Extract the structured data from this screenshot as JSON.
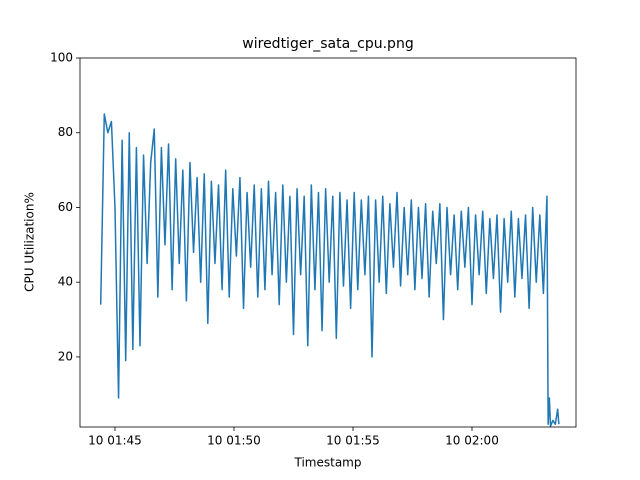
{
  "chart_data": {
    "type": "line",
    "title": "wiredtiger_sata_cpu.png",
    "x_label": "Timestamp",
    "y_label": "CPU Utilization%",
    "color": "#1f77b4",
    "x": [
      104.4,
      104.55,
      104.7,
      104.85,
      105,
      105.15,
      105.3,
      105.45,
      105.6,
      105.75,
      105.9,
      106.05,
      106.2,
      106.35,
      106.5,
      106.65,
      106.8,
      106.95,
      107.1,
      107.25,
      107.4,
      107.55,
      107.7,
      107.85,
      108,
      108.15,
      108.3,
      108.45,
      108.6,
      108.75,
      108.9,
      109.05,
      109.2,
      109.35,
      109.5,
      109.65,
      109.8,
      109.95,
      110.1,
      110.25,
      110.4,
      110.55,
      110.7,
      110.85,
      111,
      111.15,
      111.3,
      111.45,
      111.6,
      111.75,
      111.9,
      112.05,
      112.2,
      112.35,
      112.5,
      112.65,
      112.8,
      112.95,
      113.1,
      113.25,
      113.4,
      113.55,
      113.7,
      113.85,
      114,
      114.15,
      114.3,
      114.45,
      114.6,
      114.75,
      114.9,
      115.05,
      115.2,
      115.35,
      115.5,
      115.65,
      115.8,
      115.95,
      116.1,
      116.25,
      116.4,
      116.55,
      116.7,
      116.85,
      117,
      117.15,
      117.3,
      117.45,
      117.6,
      117.75,
      117.9,
      118.05,
      118.2,
      118.35,
      118.5,
      118.65,
      118.8,
      118.95,
      119.1,
      119.25,
      119.4,
      119.55,
      119.7,
      119.85,
      120,
      120.15,
      120.3,
      120.45,
      120.6,
      120.75,
      120.9,
      121.05,
      121.2,
      121.35,
      121.5,
      121.65,
      121.8,
      121.95,
      122.1,
      122.25,
      122.4,
      122.55,
      122.7,
      122.85,
      123,
      123.15,
      123.2,
      123.25,
      123.3,
      123.4,
      123.5,
      123.6,
      123.65
    ],
    "values": [
      34,
      85,
      80,
      83,
      60,
      9,
      78,
      19,
      80,
      22,
      76,
      23,
      74,
      45,
      72,
      81,
      36,
      76,
      50,
      77,
      38,
      73,
      45,
      70,
      35,
      72,
      48,
      68,
      40,
      69,
      29,
      67,
      45,
      66,
      38,
      70,
      36,
      65,
      47,
      68,
      33,
      64,
      44,
      66,
      36,
      65,
      38,
      67,
      42,
      64,
      34,
      66,
      40,
      63,
      26,
      65,
      42,
      63,
      23,
      66,
      38,
      64,
      27,
      65,
      40,
      63,
      25,
      64,
      39,
      62,
      33,
      64,
      38,
      62,
      42,
      63,
      20,
      62,
      40,
      63,
      37,
      61,
      44,
      64,
      39,
      60,
      42,
      62,
      38,
      60,
      41,
      61,
      36,
      59,
      45,
      61,
      30,
      60,
      42,
      58,
      38,
      59,
      44,
      60,
      34,
      58,
      42,
      59,
      37,
      57,
      41,
      58,
      32,
      57,
      40,
      59,
      36,
      57,
      41,
      58,
      33,
      60,
      40,
      58,
      37,
      63,
      2,
      9,
      1.5,
      3,
      2,
      6,
      2
    ],
    "xlim": [
      103.53,
      124.37
    ],
    "xticks": [
      {
        "value": 105,
        "label": "10 01:45"
      },
      {
        "value": 110,
        "label": "10 01:50"
      },
      {
        "value": 115,
        "label": "10 01:55"
      },
      {
        "value": 120,
        "label": "10 02:00"
      }
    ],
    "ylim": [
      1.25,
      100
    ],
    "yticks": [
      20,
      40,
      60,
      80,
      100
    ]
  }
}
